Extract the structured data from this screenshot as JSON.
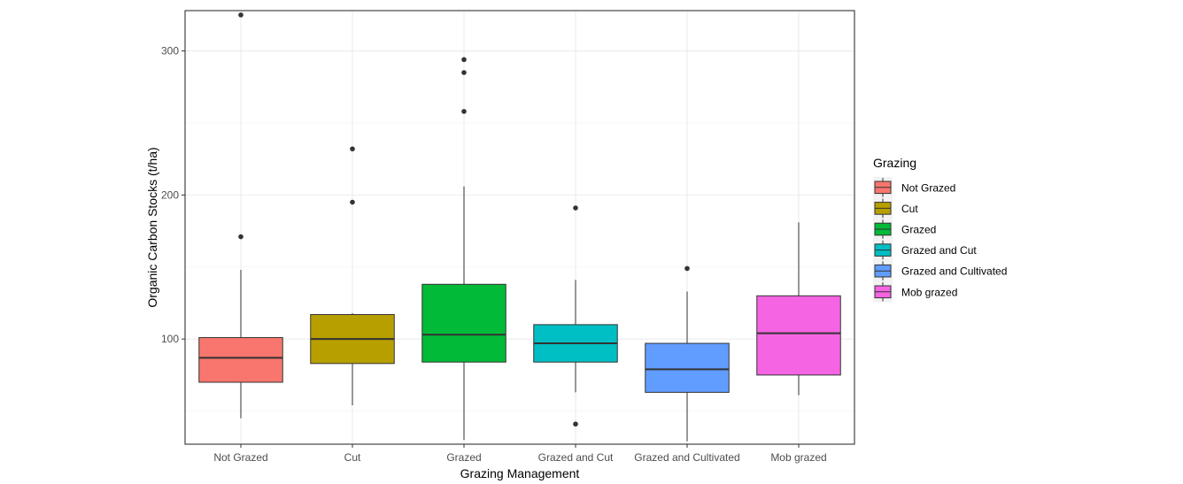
{
  "chart_data": {
    "type": "boxplot",
    "title": "",
    "xlabel": "Grazing Management",
    "ylabel": "Organic Carbon Stocks (t/ha)",
    "ylim": [
      27,
      328
    ],
    "yticks": [
      100,
      200,
      300
    ],
    "grid": true,
    "legend": {
      "title": "Grazing",
      "position": "right"
    },
    "categories": [
      "Not Grazed",
      "Cut",
      "Grazed",
      "Grazed and Cut",
      "Grazed and Cultivated",
      "Mob grazed"
    ],
    "series": [
      {
        "name": "Not Grazed",
        "color": "#F8766D",
        "lower_whisker": 45,
        "q1": 70,
        "median": 87,
        "q3": 101,
        "upper_whisker": 148,
        "outliers": [
          171,
          325
        ]
      },
      {
        "name": "Cut",
        "color": "#B79F00",
        "lower_whisker": 54,
        "q1": 83,
        "median": 100,
        "q3": 117,
        "upper_whisker": 118,
        "outliers": [
          195,
          232
        ]
      },
      {
        "name": "Grazed",
        "color": "#00BA38",
        "lower_whisker": 30,
        "q1": 84,
        "median": 103,
        "q3": 138,
        "upper_whisker": 206,
        "outliers": [
          258,
          285,
          294
        ]
      },
      {
        "name": "Grazed and Cut",
        "color": "#00BFC4",
        "lower_whisker": 63,
        "q1": 84,
        "median": 97,
        "q3": 110,
        "upper_whisker": 141,
        "outliers": [
          41,
          191
        ]
      },
      {
        "name": "Grazed and Cultivated",
        "color": "#619CFF",
        "lower_whisker": 29,
        "q1": 63,
        "median": 79,
        "q3": 97,
        "upper_whisker": 133,
        "outliers": [
          149
        ]
      },
      {
        "name": "Mob grazed",
        "color": "#F564E3",
        "lower_whisker": 61,
        "q1": 75,
        "median": 104,
        "q3": 130,
        "upper_whisker": 181,
        "outliers": []
      }
    ]
  }
}
